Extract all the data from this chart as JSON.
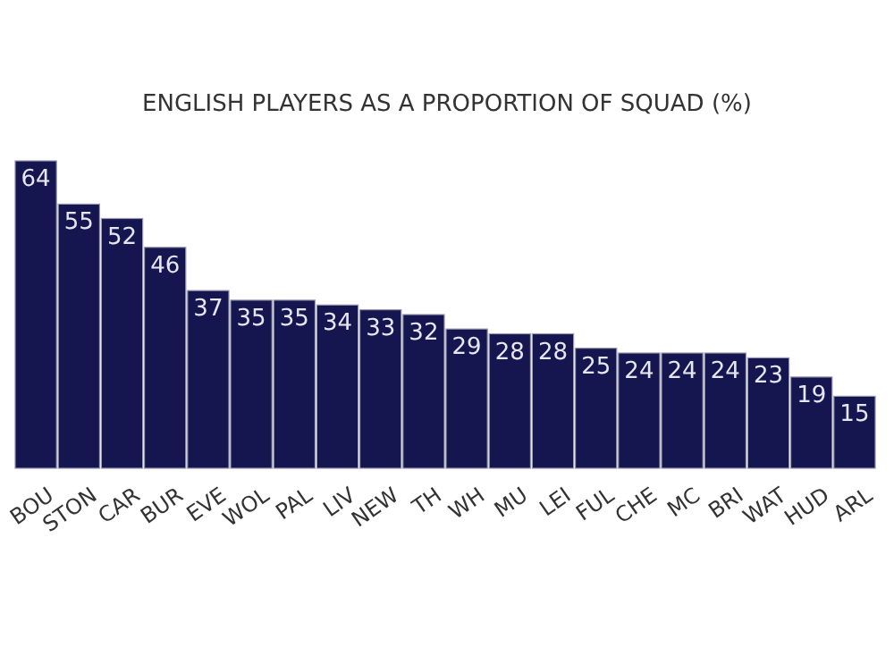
{
  "chart_data": {
    "type": "bar",
    "title": "ENGLISH PLAYERS AS A PROPORTION OF SQUAD (%)",
    "categories": [
      "BOU",
      "STON",
      "CAR",
      "BUR",
      "EVE",
      "WOL",
      "PAL",
      "LIV",
      "NEW",
      "TH",
      "WH",
      "MU",
      "LEI",
      "FUL",
      "CHE",
      "MC",
      "BRI",
      "WAT",
      "HUD",
      "ARL"
    ],
    "values": [
      64,
      55,
      52,
      46,
      37,
      35,
      35,
      34,
      33,
      32,
      29,
      28,
      28,
      25,
      24,
      24,
      24,
      23,
      19,
      15
    ],
    "color": "#15154f",
    "data_labels": true,
    "ylim": [
      0,
      64
    ]
  }
}
